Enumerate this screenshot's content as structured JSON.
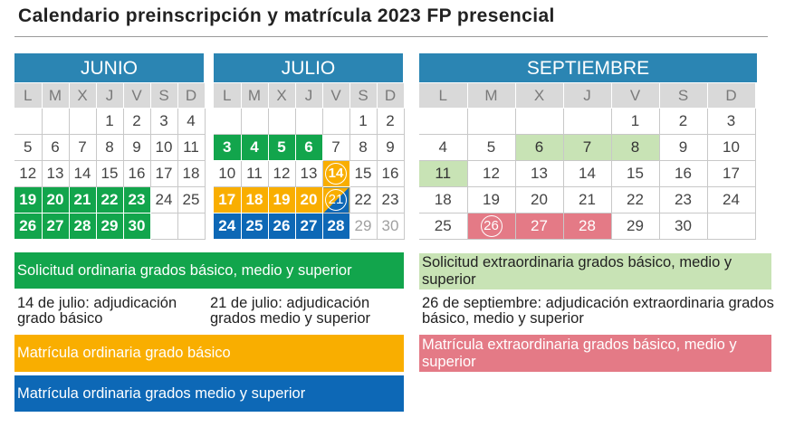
{
  "title": "Calendario preinscripción y matrícula 2023 FP presencial",
  "weekdays": [
    "L",
    "M",
    "X",
    "J",
    "V",
    "S",
    "D"
  ],
  "months": [
    {
      "name": "JUNIO",
      "weeks": [
        [
          "",
          "",
          "",
          "1",
          "2",
          "3",
          "4"
        ],
        [
          "5",
          "6",
          "7",
          "8",
          "9",
          "10",
          "11"
        ],
        [
          "12",
          "13",
          "14",
          "15",
          "16",
          "17",
          "18"
        ],
        [
          "19",
          "20",
          "21",
          "22",
          "23",
          "24",
          "25"
        ],
        [
          "26",
          "27",
          "28",
          "29",
          "30",
          "",
          ""
        ]
      ],
      "styles": [
        [
          "",
          "",
          "",
          "",
          "",
          "",
          ""
        ],
        [
          "",
          "",
          "",
          "",
          "",
          "",
          ""
        ],
        [
          "",
          "",
          "",
          "",
          "",
          "",
          ""
        ],
        [
          "green",
          "green",
          "green",
          "green",
          "green",
          "",
          ""
        ],
        [
          "green",
          "green",
          "green",
          "green",
          "green",
          "",
          ""
        ]
      ],
      "circled": []
    },
    {
      "name": "JULIO",
      "weeks": [
        [
          "",
          "",
          "",
          "",
          "",
          "1",
          "2"
        ],
        [
          "3",
          "4",
          "5",
          "6",
          "7",
          "8",
          "9"
        ],
        [
          "10",
          "11",
          "12",
          "13",
          "14",
          "15",
          "16"
        ],
        [
          "17",
          "18",
          "19",
          "20",
          "21",
          "22",
          "23"
        ],
        [
          "24",
          "25",
          "26",
          "27",
          "28",
          "29",
          "30"
        ]
      ],
      "styles": [
        [
          "",
          "",
          "",
          "",
          "",
          "",
          ""
        ],
        [
          "green",
          "green",
          "green",
          "green",
          "",
          "",
          ""
        ],
        [
          "",
          "",
          "",
          "",
          "yellow",
          "",
          ""
        ],
        [
          "yellow",
          "yellow",
          "yellow",
          "yellow",
          "split",
          "",
          ""
        ],
        [
          "blue",
          "blue",
          "blue",
          "blue",
          "blue",
          "gray",
          "gray"
        ]
      ],
      "circled": [
        "14",
        "21"
      ]
    },
    {
      "name": "SEPTIEMBRE",
      "weeks": [
        [
          "",
          "",
          "",
          "",
          "1",
          "2",
          "3"
        ],
        [
          "4",
          "5",
          "6",
          "7",
          "8",
          "9",
          "10"
        ],
        [
          "11",
          "12",
          "13",
          "14",
          "15",
          "16",
          "17"
        ],
        [
          "18",
          "19",
          "20",
          "21",
          "22",
          "23",
          "24"
        ],
        [
          "25",
          "26",
          "27",
          "28",
          "29",
          "30",
          ""
        ]
      ],
      "styles": [
        [
          "",
          "",
          "",
          "",
          "",
          "",
          ""
        ],
        [
          "",
          "",
          "lgreen",
          "lgreen",
          "lgreen",
          "",
          ""
        ],
        [
          "lgreen",
          "",
          "",
          "",
          "",
          "",
          ""
        ],
        [
          "",
          "",
          "",
          "",
          "",
          "",
          ""
        ],
        [
          "",
          "pink",
          "pink",
          "pink",
          "",
          "",
          ""
        ]
      ],
      "circled": [
        "26"
      ]
    }
  ],
  "legend": {
    "ordinaria": "Solicitud ordinaria grados básico, medio y superior",
    "extraordinaria": "Solicitud extraordinaria grados básico, medio y superior",
    "note_jul14": "14 de julio: adjudicación grado básico",
    "note_jul21": "21 de julio: adjudicación grados medio y superior",
    "note_sep26": "26 de septiembre: adjudicación extraordinaria grados básico, medio y superior",
    "matricula_basico": "Matrícula ordinaria grado básico",
    "matricula_medio_superior": "Matrícula ordinaria grados medio y superior",
    "matricula_extra": "Matrícula extraordinaria grados básico, medio y superior"
  },
  "colors": {
    "month_header": "#2b85b3",
    "green": "#12a54c",
    "yellow": "#f9ae00",
    "blue": "#0d68b6",
    "light_green": "#c8e3b5",
    "pink": "#e47a86"
  }
}
